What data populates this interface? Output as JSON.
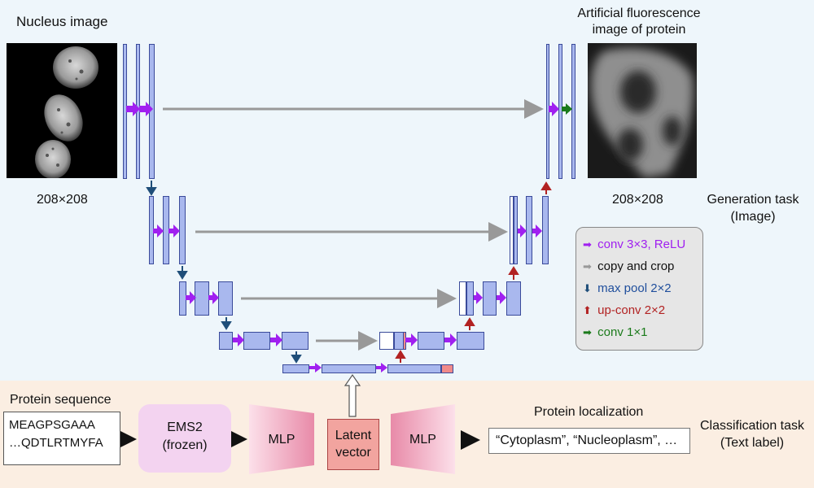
{
  "labels": {
    "nucleus_image": "Nucleus image",
    "artificial_line1": "Artificial fluorescence",
    "artificial_line2": "image of protein",
    "input_size": "208×208",
    "output_size": "208×208",
    "generation_task_line1": "Generation task",
    "generation_task_line2": "(Image)",
    "protein_sequence": "Protein sequence",
    "protein_localization": "Protein localization",
    "classification_task_line1": "Classification task",
    "classification_task_line2": "(Text label)"
  },
  "legend": [
    {
      "symbol": "➡",
      "text": "conv 3×3, ReLU",
      "color": "#a020f0"
    },
    {
      "symbol": "➡",
      "text": "copy and crop",
      "color": "#111111",
      "symbol_color": "#999999"
    },
    {
      "symbol": "⬇",
      "text": "max pool 2×2",
      "color": "#1f4e9c",
      "symbol_color": "#1f4e79"
    },
    {
      "symbol": "⬆",
      "text": "up-conv 2×2",
      "color": "#b22222"
    },
    {
      "symbol": "➡",
      "text": "conv 1×1",
      "color": "#1a7a1a"
    }
  ],
  "pipeline": {
    "sequence_line1": "MEAGPSGAAA",
    "sequence_line2": "…QDTLRTMYFA",
    "ems_line1": "EMS2",
    "ems_line2": "(frozen)",
    "mlp_left": "MLP",
    "latent_line1": "Latent",
    "latent_line2": "vector",
    "mlp_right": "MLP",
    "localization_output": "“Cytoplasm”, “Nucleoplasm”, …"
  },
  "colors": {
    "conv": "#a020f0",
    "copy": "#999999",
    "pool": "#1f4e79",
    "upconv": "#b22222",
    "conv1x1": "#1a7a1a",
    "layer_fill": "#a9b8ee",
    "latent": "#f2a49f"
  }
}
